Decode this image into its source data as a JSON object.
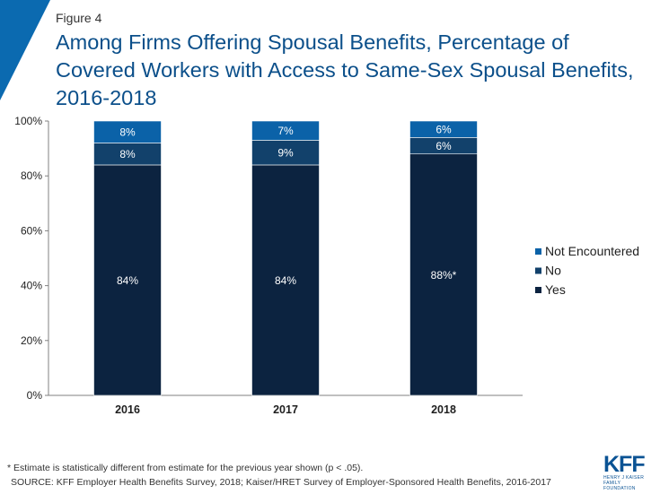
{
  "header": {
    "figure_label": "Figure 4",
    "title": "Among Firms Offering Spousal Benefits, Percentage of Covered Workers with Access to Same-Sex Spousal Benefits, 2016-2018"
  },
  "colors": {
    "accent": "#0b6ab0",
    "title": "#0b4f8a",
    "yes": "#0c2340",
    "no": "#12416b",
    "not_encountered": "#0b62a8"
  },
  "chart_data": {
    "type": "bar",
    "stacked": true,
    "categories": [
      "2016",
      "2017",
      "2018"
    ],
    "series": [
      {
        "name": "Yes",
        "values": [
          84,
          84,
          88
        ],
        "labels": [
          "84%",
          "84%",
          "88%*"
        ],
        "color": "#0c2340"
      },
      {
        "name": "No",
        "values": [
          8,
          9,
          6
        ],
        "labels": [
          "8%",
          "9%",
          "6%"
        ],
        "color": "#12416b"
      },
      {
        "name": "Not Encountered",
        "values": [
          8,
          7,
          6
        ],
        "labels": [
          "8%",
          "7%",
          "6%"
        ],
        "color": "#0b62a8"
      }
    ],
    "ylim": [
      0,
      100
    ],
    "yticks": [
      0,
      20,
      40,
      60,
      80,
      100
    ],
    "ytick_labels": [
      "0%",
      "20%",
      "40%",
      "60%",
      "80%",
      "100%"
    ],
    "legend": {
      "position": "right",
      "order": [
        "Not Encountered",
        "No",
        "Yes"
      ]
    },
    "grid": false
  },
  "footer": {
    "footnote": "* Estimate is statistically different from estimate for the previous year shown (p < .05).",
    "source": "SOURCE: KFF Employer Health Benefits Survey, 2018; Kaiser/HRET Survey of Employer-Sponsored Health Benefits, 2016-2017"
  },
  "logo": {
    "text": "KFF",
    "subtext": "HENRY J KAISER FAMILY FOUNDATION"
  }
}
